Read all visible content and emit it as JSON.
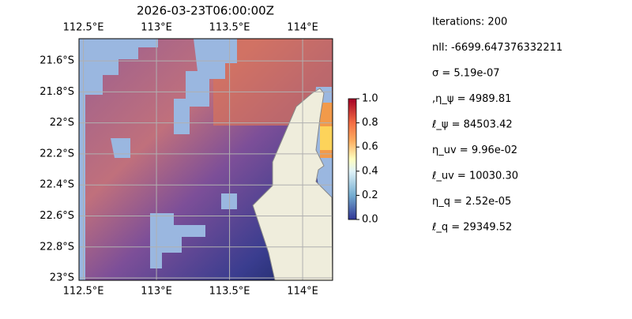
{
  "chart_data": {
    "type": "map",
    "title": "2026-03-23T06:00:00Z",
    "xlim": [
      112.47,
      114.205
    ],
    "ylim": [
      -23.015,
      -21.457
    ],
    "xticks": [
      {
        "value": 112.5,
        "label": "112.5°E"
      },
      {
        "value": 113,
        "label": "113°E"
      },
      {
        "value": 113.5,
        "label": "113.5°E"
      },
      {
        "value": 114,
        "label": "114°E"
      }
    ],
    "yticks": [
      {
        "value": -21.6,
        "label": "21.6°S"
      },
      {
        "value": -21.8,
        "label": "21.8°S"
      },
      {
        "value": -22,
        "label": "22°S"
      },
      {
        "value": -22.2,
        "label": "22.2°S"
      },
      {
        "value": -22.4,
        "label": "22.4°S"
      },
      {
        "value": -22.6,
        "label": "22.6°S"
      },
      {
        "value": -22.8,
        "label": "22.8°S"
      },
      {
        "value": -23,
        "label": "23°S"
      }
    ],
    "grid": true,
    "colorbar": {
      "lim": [
        0,
        1
      ],
      "ticks": [
        {
          "value": 0,
          "label": "0.0"
        },
        {
          "value": 0.2,
          "label": "0.2"
        },
        {
          "value": 0.4,
          "label": "0.4"
        },
        {
          "value": 0.6,
          "label": "0.6"
        },
        {
          "value": 0.8,
          "label": "0.8"
        },
        {
          "value": 1,
          "label": "1.0"
        }
      ]
    },
    "annotations": [
      "Iterations: 200",
      "nll: -6699.647376332211",
      "σ = 5.19e-07",
      ",η_ψ = 4989.81",
      "ℓ_ψ = 84503.42",
      "η_uv = 9.96e-02",
      "ℓ_uv = 10030.30",
      "η_q = 2.52e-05",
      "ℓ_q = 29349.52"
    ]
  }
}
